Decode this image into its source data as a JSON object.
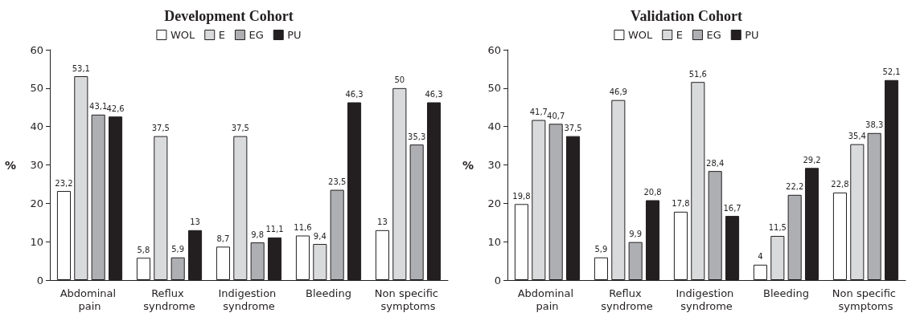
{
  "chart_data": [
    {
      "type": "bar",
      "title": "Development Cohort",
      "ylabel": "%",
      "categories": [
        "Abdominal pain",
        "Reflux syndrome",
        "Indigestion syndrome",
        "Bleeding",
        "Non specific symptoms"
      ],
      "ylim": [
        0,
        60
      ],
      "yticks": [
        0,
        10,
        20,
        30,
        40,
        50,
        60
      ],
      "grid": false,
      "legend": "top",
      "series": [
        {
          "name": "WOL",
          "color": "#ffffff",
          "values": [
            23.2,
            5.8,
            8.7,
            11.6,
            13
          ],
          "value_labels": [
            "23,2",
            "5,8",
            "8,7",
            "11,6",
            "13"
          ]
        },
        {
          "name": "E",
          "color": "#d9dadb",
          "values": [
            53.1,
            37.5,
            37.5,
            9.4,
            50
          ],
          "value_labels": [
            "53,1",
            "37,5",
            "37,5",
            "9,4",
            "50"
          ]
        },
        {
          "name": "EG",
          "color": "#aeafb2",
          "values": [
            43.1,
            5.9,
            9.8,
            23.5,
            35.3
          ],
          "value_labels": [
            "43,1",
            "5,9",
            "9,8",
            "23,5",
            "35,3"
          ]
        },
        {
          "name": "PU",
          "color": "#231f20",
          "values": [
            42.6,
            13,
            11.1,
            46.3,
            46.3
          ],
          "value_labels": [
            "42,6",
            "13",
            "11,1",
            "46,3",
            "46,3"
          ]
        }
      ]
    },
    {
      "type": "bar",
      "title": "Validation Cohort",
      "ylabel": "%",
      "categories": [
        "Abdominal pain",
        "Reflux syndrome",
        "Indigestion syndrome",
        "Bleeding",
        "Non specific symptoms"
      ],
      "ylim": [
        0,
        60
      ],
      "yticks": [
        0,
        10,
        20,
        30,
        40,
        50,
        60
      ],
      "grid": false,
      "legend": "top",
      "series": [
        {
          "name": "WOL",
          "color": "#ffffff",
          "values": [
            19.8,
            5.9,
            17.8,
            4,
            22.8
          ],
          "value_labels": [
            "19,8",
            "5,9",
            "17,8",
            "4",
            "22,8"
          ]
        },
        {
          "name": "E",
          "color": "#d9dadb",
          "values": [
            41.7,
            46.9,
            51.6,
            11.5,
            35.4
          ],
          "value_labels": [
            "41,7",
            "46,9",
            "51,6",
            "11,5",
            "35,4"
          ]
        },
        {
          "name": "EG",
          "color": "#aeafb2",
          "values": [
            40.7,
            9.9,
            28.4,
            22.2,
            38.3
          ],
          "value_labels": [
            "40,7",
            "9,9",
            "28,4",
            "22,2",
            "38,3"
          ]
        },
        {
          "name": "PU",
          "color": "#231f20",
          "values": [
            37.5,
            20.8,
            16.7,
            29.2,
            52.1
          ],
          "value_labels": [
            "37,5",
            "20,8",
            "16,7",
            "29,2",
            "52,1"
          ]
        }
      ]
    }
  ]
}
